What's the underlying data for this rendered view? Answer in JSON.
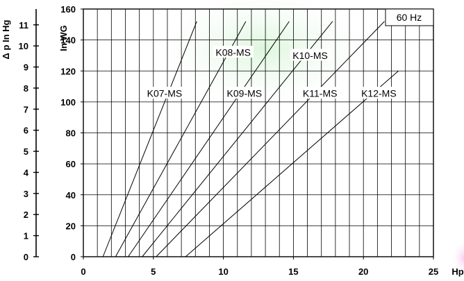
{
  "chart_data": {
    "type": "line",
    "x_label": "Hp",
    "y_label": "In WG",
    "y2_label": "Δ p  In Hg",
    "legend_label": "60 Hz",
    "xlim": [
      0,
      25
    ],
    "ylim": [
      0,
      160
    ],
    "y2lim": [
      0,
      11.75
    ],
    "x_ticks": [
      "0",
      "5",
      "10",
      "15",
      "20",
      "25"
    ],
    "y_ticks": [
      "0",
      "20",
      "40",
      "60",
      "80",
      "100",
      "120",
      "140",
      "160"
    ],
    "y2_ticks": [
      "0",
      "1",
      "2",
      "3",
      "4",
      "5",
      "6",
      "7",
      "8",
      "9",
      "10",
      "11"
    ],
    "grid": true,
    "series": [
      {
        "name": "K07-MS",
        "x": [
          1.4,
          8.1
        ],
        "y": [
          0,
          152
        ],
        "label_at": [
          5.8,
          105.5
        ]
      },
      {
        "name": "K08-MS",
        "x": [
          2.3,
          11.6
        ],
        "y": [
          0,
          152
        ],
        "label_at": [
          10.7,
          132
        ]
      },
      {
        "name": "K09-MS",
        "x": [
          3.2,
          14.7
        ],
        "y": [
          0,
          152
        ],
        "label_at": [
          11.5,
          105.5
        ]
      },
      {
        "name": "K10-MS",
        "x": [
          4.2,
          17.8
        ],
        "y": [
          0,
          152
        ],
        "label_at": [
          16.2,
          130
        ]
      },
      {
        "name": "K11-MS",
        "x": [
          5.2,
          21.5
        ],
        "y": [
          0,
          152
        ],
        "label_at": [
          16.9,
          105.5
        ]
      },
      {
        "name": "K12-MS",
        "x": [
          7.3,
          22.5
        ],
        "y": [
          0,
          120
        ],
        "label_at": [
          21.1,
          105.5
        ]
      }
    ]
  }
}
